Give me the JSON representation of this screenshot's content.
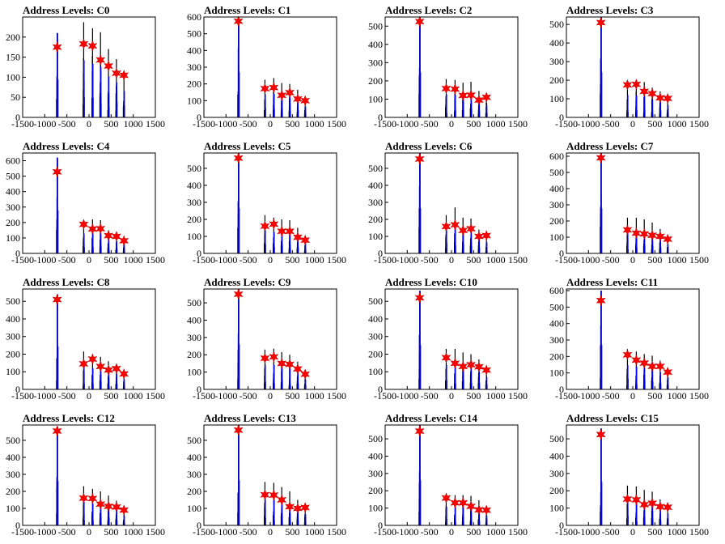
{
  "figure": {
    "background": "#ffffff"
  },
  "colors": {
    "histogram_black": "#000000",
    "histogram_blue": "#0000ff",
    "marker": "#ff0000"
  },
  "marker_symbol": "star",
  "chart_data": [
    {
      "type": "bar",
      "title": "Address Levels: C0",
      "xlim": [
        -1500,
        1500
      ],
      "ylim": [
        0,
        250
      ],
      "xticks": [
        "-1500",
        "-1000",
        "-500",
        "0",
        "500",
        "1000",
        "1500"
      ],
      "yticks": [
        "0",
        "50",
        "100",
        "150",
        "200"
      ],
      "peaks": [
        {
          "x": -720,
          "y": 175,
          "h": 210
        },
        {
          "x": -120,
          "y": 183,
          "h": 237
        },
        {
          "x": 80,
          "y": 178,
          "h": 222
        },
        {
          "x": 260,
          "y": 143,
          "h": 212
        },
        {
          "x": 440,
          "y": 128,
          "h": 170
        },
        {
          "x": 620,
          "y": 110,
          "h": 145
        },
        {
          "x": 790,
          "y": 105,
          "h": 110
        }
      ]
    },
    {
      "type": "bar",
      "title": "Address Levels: C1",
      "xlim": [
        -1500,
        1500
      ],
      "ylim": [
        0,
        600
      ],
      "xticks": [
        "-1500",
        "-1000",
        "-500",
        "0",
        "500",
        "1000",
        "1500"
      ],
      "yticks": [
        "0",
        "100",
        "200",
        "300",
        "400",
        "500",
        "600"
      ],
      "peaks": [
        {
          "x": -720,
          "y": 575,
          "h": 600
        },
        {
          "x": -120,
          "y": 172,
          "h": 225
        },
        {
          "x": 80,
          "y": 178,
          "h": 235
        },
        {
          "x": 260,
          "y": 132,
          "h": 205
        },
        {
          "x": 440,
          "y": 148,
          "h": 200
        },
        {
          "x": 620,
          "y": 110,
          "h": 165
        },
        {
          "x": 790,
          "y": 100,
          "h": 110
        }
      ]
    },
    {
      "type": "bar",
      "title": "Address Levels: C2",
      "xlim": [
        -1500,
        1500
      ],
      "ylim": [
        0,
        550
      ],
      "xticks": [
        "-1500",
        "-1000",
        "-500",
        "0",
        "500",
        "1000",
        "1500"
      ],
      "yticks": [
        "0",
        "100",
        "200",
        "300",
        "400",
        "500"
      ],
      "peaks": [
        {
          "x": -720,
          "y": 525,
          "h": 550
        },
        {
          "x": -120,
          "y": 158,
          "h": 210
        },
        {
          "x": 80,
          "y": 155,
          "h": 205
        },
        {
          "x": 260,
          "y": 120,
          "h": 190
        },
        {
          "x": 440,
          "y": 122,
          "h": 195
        },
        {
          "x": 620,
          "y": 95,
          "h": 145
        },
        {
          "x": 790,
          "y": 110,
          "h": 115
        }
      ]
    },
    {
      "type": "bar",
      "title": "Address Levels: C3",
      "xlim": [
        -1500,
        1500
      ],
      "ylim": [
        0,
        540
      ],
      "xticks": [
        "-1500",
        "-1000",
        "-500",
        "0",
        "500",
        "1000",
        "1500"
      ],
      "yticks": [
        "0",
        "100",
        "200",
        "300",
        "400",
        "500"
      ],
      "peaks": [
        {
          "x": -720,
          "y": 510,
          "h": 540
        },
        {
          "x": -120,
          "y": 175,
          "h": 200
        },
        {
          "x": 80,
          "y": 178,
          "h": 195
        },
        {
          "x": 260,
          "y": 140,
          "h": 190
        },
        {
          "x": 440,
          "y": 128,
          "h": 160
        },
        {
          "x": 620,
          "y": 105,
          "h": 140
        },
        {
          "x": 790,
          "y": 102,
          "h": 110
        }
      ]
    },
    {
      "type": "bar",
      "title": "Address Levels: C4",
      "xlim": [
        -1500,
        1500
      ],
      "ylim": [
        0,
        650
      ],
      "xticks": [
        "-1500",
        "-1000",
        "-500",
        "0",
        "500",
        "1000",
        "1500"
      ],
      "yticks": [
        "0",
        "100",
        "200",
        "300",
        "400",
        "500",
        "600"
      ],
      "peaks": [
        {
          "x": -720,
          "y": 528,
          "h": 620
        },
        {
          "x": -120,
          "y": 188,
          "h": 215
        },
        {
          "x": 80,
          "y": 158,
          "h": 220
        },
        {
          "x": 260,
          "y": 160,
          "h": 215
        },
        {
          "x": 440,
          "y": 115,
          "h": 150
        },
        {
          "x": 620,
          "y": 110,
          "h": 130
        },
        {
          "x": 790,
          "y": 82,
          "h": 95
        }
      ]
    },
    {
      "type": "bar",
      "title": "Address Levels: C5",
      "xlim": [
        -1500,
        1500
      ],
      "ylim": [
        0,
        590
      ],
      "xticks": [
        "-1500",
        "-1000",
        "-500",
        "0",
        "500",
        "1000",
        "1500"
      ],
      "yticks": [
        "0",
        "100",
        "200",
        "300",
        "400",
        "500"
      ],
      "peaks": [
        {
          "x": -720,
          "y": 560,
          "h": 590
        },
        {
          "x": -120,
          "y": 160,
          "h": 225
        },
        {
          "x": 80,
          "y": 172,
          "h": 210
        },
        {
          "x": 260,
          "y": 130,
          "h": 200
        },
        {
          "x": 440,
          "y": 130,
          "h": 195
        },
        {
          "x": 620,
          "y": 95,
          "h": 150
        },
        {
          "x": 790,
          "y": 78,
          "h": 95
        }
      ]
    },
    {
      "type": "bar",
      "title": "Address Levels: C6",
      "xlim": [
        -1500,
        1500
      ],
      "ylim": [
        0,
        590
      ],
      "xticks": [
        "-1500",
        "-1000",
        "-500",
        "0",
        "500",
        "1000",
        "1500"
      ],
      "yticks": [
        "0",
        "100",
        "200",
        "300",
        "400",
        "500"
      ],
      "peaks": [
        {
          "x": -720,
          "y": 555,
          "h": 590
        },
        {
          "x": -120,
          "y": 158,
          "h": 225
        },
        {
          "x": 80,
          "y": 168,
          "h": 270
        },
        {
          "x": 260,
          "y": 135,
          "h": 210
        },
        {
          "x": 440,
          "y": 145,
          "h": 205
        },
        {
          "x": 620,
          "y": 100,
          "h": 140
        },
        {
          "x": 790,
          "y": 105,
          "h": 110
        }
      ]
    },
    {
      "type": "bar",
      "title": "Address Levels: C7",
      "xlim": [
        -1500,
        1500
      ],
      "ylim": [
        0,
        620
      ],
      "xticks": [
        "-1500",
        "-1000",
        "-500",
        "0",
        "500",
        "1000",
        "1500"
      ],
      "yticks": [
        "0",
        "100",
        "200",
        "300",
        "400",
        "500",
        "600"
      ],
      "peaks": [
        {
          "x": -720,
          "y": 590,
          "h": 620
        },
        {
          "x": -120,
          "y": 145,
          "h": 220
        },
        {
          "x": 80,
          "y": 125,
          "h": 220
        },
        {
          "x": 260,
          "y": 120,
          "h": 210
        },
        {
          "x": 440,
          "y": 112,
          "h": 190
        },
        {
          "x": 620,
          "y": 105,
          "h": 150
        },
        {
          "x": 790,
          "y": 88,
          "h": 95
        }
      ]
    },
    {
      "type": "bar",
      "title": "Address Levels: C8",
      "xlim": [
        -1500,
        1500
      ],
      "ylim": [
        0,
        570
      ],
      "xticks": [
        "-1500",
        "-1000",
        "-500",
        "0",
        "500",
        "1000",
        "1500"
      ],
      "yticks": [
        "0",
        "100",
        "200",
        "300",
        "400",
        "500"
      ],
      "peaks": [
        {
          "x": -720,
          "y": 510,
          "h": 540
        },
        {
          "x": -120,
          "y": 145,
          "h": 215
        },
        {
          "x": 80,
          "y": 172,
          "h": 200
        },
        {
          "x": 260,
          "y": 130,
          "h": 185
        },
        {
          "x": 440,
          "y": 110,
          "h": 160
        },
        {
          "x": 620,
          "y": 118,
          "h": 145
        },
        {
          "x": 790,
          "y": 88,
          "h": 95
        }
      ]
    },
    {
      "type": "bar",
      "title": "Address Levels: C9",
      "xlim": [
        -1500,
        1500
      ],
      "ylim": [
        0,
        580
      ],
      "xticks": [
        "-1500",
        "-1000",
        "-500",
        "0",
        "500",
        "1000",
        "1500"
      ],
      "yticks": [
        "0",
        "100",
        "200",
        "300",
        "400",
        "500"
      ],
      "peaks": [
        {
          "x": -720,
          "y": 550,
          "h": 580
        },
        {
          "x": -120,
          "y": 180,
          "h": 230
        },
        {
          "x": 80,
          "y": 188,
          "h": 235
        },
        {
          "x": 260,
          "y": 150,
          "h": 215
        },
        {
          "x": 440,
          "y": 145,
          "h": 200
        },
        {
          "x": 620,
          "y": 118,
          "h": 160
        },
        {
          "x": 790,
          "y": 88,
          "h": 95
        }
      ]
    },
    {
      "type": "bar",
      "title": "Address Levels: C10",
      "xlim": [
        -1500,
        1500
      ],
      "ylim": [
        0,
        570
      ],
      "xticks": [
        "-1500",
        "-1000",
        "-500",
        "0",
        "500",
        "1000",
        "1500"
      ],
      "yticks": [
        "0",
        "100",
        "200",
        "300",
        "400",
        "500"
      ],
      "peaks": [
        {
          "x": -720,
          "y": 520,
          "h": 560
        },
        {
          "x": -120,
          "y": 180,
          "h": 230
        },
        {
          "x": 80,
          "y": 148,
          "h": 230
        },
        {
          "x": 260,
          "y": 130,
          "h": 210
        },
        {
          "x": 440,
          "y": 140,
          "h": 200
        },
        {
          "x": 620,
          "y": 128,
          "h": 170
        },
        {
          "x": 790,
          "y": 110,
          "h": 120
        }
      ]
    },
    {
      "type": "bar",
      "title": "Address Levels: C11",
      "xlim": [
        -1500,
        1500
      ],
      "ylim": [
        0,
        610
      ],
      "xticks": [
        "-1500",
        "-1000",
        "-500",
        "0",
        "500",
        "1000",
        "1500"
      ],
      "yticks": [
        "0",
        "100",
        "200",
        "300",
        "400",
        "500",
        "600"
      ],
      "peaks": [
        {
          "x": -720,
          "y": 540,
          "h": 600
        },
        {
          "x": -120,
          "y": 210,
          "h": 245
        },
        {
          "x": 80,
          "y": 178,
          "h": 230
        },
        {
          "x": 260,
          "y": 160,
          "h": 215
        },
        {
          "x": 440,
          "y": 140,
          "h": 205
        },
        {
          "x": 620,
          "y": 140,
          "h": 175
        },
        {
          "x": 790,
          "y": 105,
          "h": 125
        }
      ]
    },
    {
      "type": "bar",
      "title": "Address Levels: C12",
      "xlim": [
        -1500,
        1500
      ],
      "ylim": [
        0,
        590
      ],
      "xticks": [
        "-1500",
        "-1000",
        "-500",
        "0",
        "500",
        "1000",
        "1500"
      ],
      "yticks": [
        "0",
        "100",
        "200",
        "300",
        "400",
        "500"
      ],
      "peaks": [
        {
          "x": -720,
          "y": 555,
          "h": 580
        },
        {
          "x": -120,
          "y": 160,
          "h": 230
        },
        {
          "x": 80,
          "y": 158,
          "h": 215
        },
        {
          "x": 260,
          "y": 125,
          "h": 200
        },
        {
          "x": 440,
          "y": 112,
          "h": 175
        },
        {
          "x": 620,
          "y": 108,
          "h": 145
        },
        {
          "x": 790,
          "y": 90,
          "h": 95
        }
      ]
    },
    {
      "type": "bar",
      "title": "Address Levels: C13",
      "xlim": [
        -1500,
        1500
      ],
      "ylim": [
        0,
        590
      ],
      "xticks": [
        "-1500",
        "-1000",
        "-500",
        "0",
        "500",
        "1000",
        "1500"
      ],
      "yticks": [
        "0",
        "100",
        "200",
        "300",
        "400",
        "500"
      ],
      "peaks": [
        {
          "x": -720,
          "y": 560,
          "h": 590
        },
        {
          "x": -120,
          "y": 180,
          "h": 255
        },
        {
          "x": 80,
          "y": 178,
          "h": 250
        },
        {
          "x": 260,
          "y": 150,
          "h": 225
        },
        {
          "x": 440,
          "y": 110,
          "h": 200
        },
        {
          "x": 620,
          "y": 100,
          "h": 150
        },
        {
          "x": 790,
          "y": 105,
          "h": 110
        }
      ]
    },
    {
      "type": "bar",
      "title": "Address Levels: C14",
      "xlim": [
        -1500,
        1500
      ],
      "ylim": [
        0,
        580
      ],
      "xticks": [
        "-1500",
        "-1000",
        "-500",
        "0",
        "500",
        "1000",
        "1500"
      ],
      "yticks": [
        "0",
        "100",
        "200",
        "300",
        "400",
        "500"
      ],
      "peaks": [
        {
          "x": -720,
          "y": 545,
          "h": 580
        },
        {
          "x": -120,
          "y": 158,
          "h": 180
        },
        {
          "x": 80,
          "y": 130,
          "h": 175
        },
        {
          "x": 260,
          "y": 130,
          "h": 175
        },
        {
          "x": 440,
          "y": 110,
          "h": 170
        },
        {
          "x": 620,
          "y": 90,
          "h": 145
        },
        {
          "x": 790,
          "y": 88,
          "h": 95
        }
      ]
    },
    {
      "type": "bar",
      "title": "Address Levels: C15",
      "xlim": [
        -1500,
        1500
      ],
      "ylim": [
        0,
        580
      ],
      "xticks": [
        "-1500",
        "-1000",
        "-500",
        "0",
        "500",
        "1000",
        "1500"
      ],
      "yticks": [
        "0",
        "100",
        "200",
        "300",
        "400",
        "500"
      ],
      "peaks": [
        {
          "x": -720,
          "y": 525,
          "h": 560
        },
        {
          "x": -120,
          "y": 152,
          "h": 230
        },
        {
          "x": 80,
          "y": 148,
          "h": 225
        },
        {
          "x": 260,
          "y": 120,
          "h": 205
        },
        {
          "x": 440,
          "y": 128,
          "h": 195
        },
        {
          "x": 620,
          "y": 108,
          "h": 150
        },
        {
          "x": 790,
          "y": 105,
          "h": 115
        }
      ]
    }
  ]
}
